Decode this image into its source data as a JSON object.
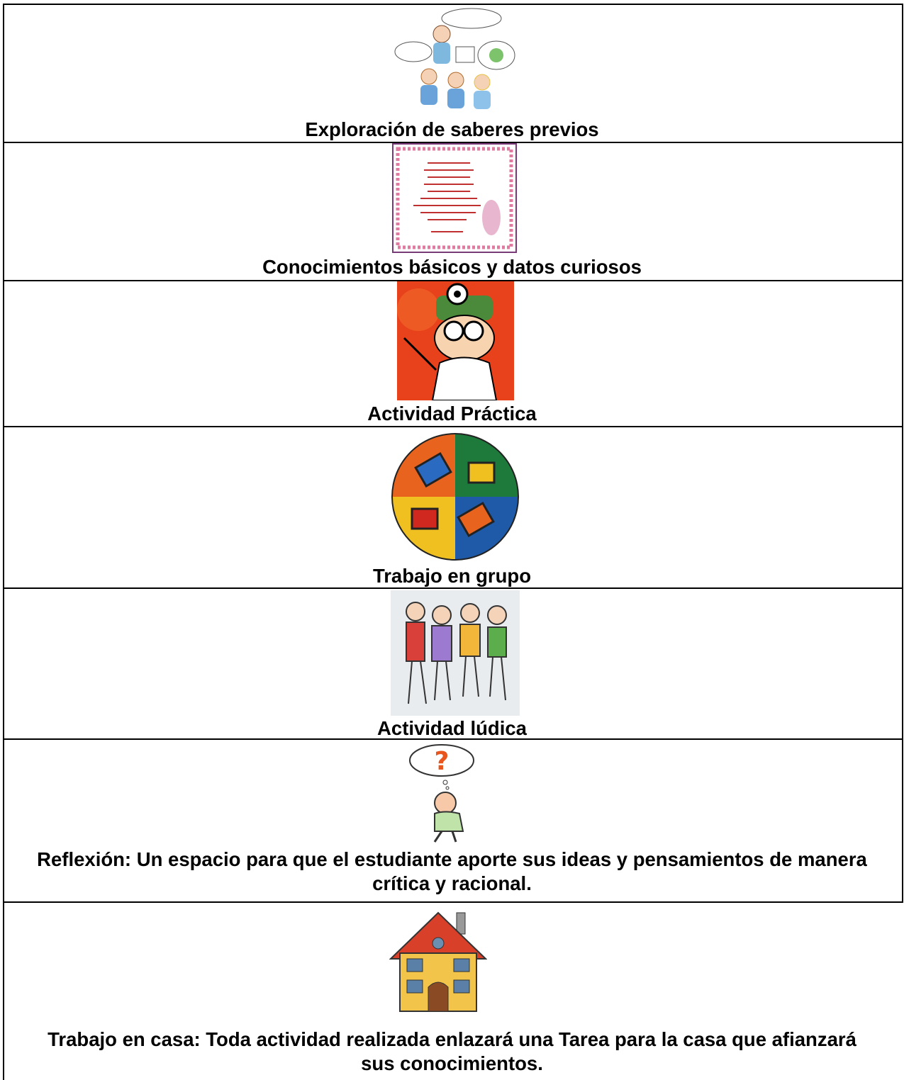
{
  "table": {
    "rows": [
      {
        "caption": "Exploración de saberes previos"
      },
      {
        "caption": "Conocimientos básicos y datos curiosos"
      },
      {
        "caption": "Actividad Práctica"
      },
      {
        "caption": "Trabajo en grupo"
      },
      {
        "caption": "Actividad lúdica"
      },
      {
        "caption": "Reflexión: Un espacio para que el estudiante aporte sus ideas y pensamientos de manera crítica y racional."
      },
      {
        "caption": "Trabajo en casa: Toda actividad realizada enlazará una Tarea para la casa que afianzará sus conocimientos."
      }
    ]
  }
}
